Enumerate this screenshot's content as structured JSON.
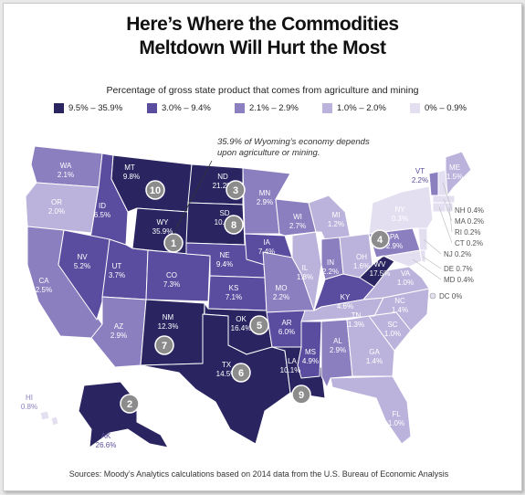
{
  "title": {
    "line1": "Here’s Where the Commodities",
    "line2": "Meltdown Will Hurt the Most"
  },
  "subtitle": "Percentage of gross state product that comes from agriculture and mining",
  "legend": [
    {
      "label": "9.5% – 35.9%",
      "color": "#2a2460"
    },
    {
      "label": "3.0% – 9.4%",
      "color": "#5a4c9e"
    },
    {
      "label": "2.1% – 2.9%",
      "color": "#8b7fc0"
    },
    {
      "label": "1.0% – 2.0%",
      "color": "#bbb3dc"
    },
    {
      "label": "0% – 0.9%",
      "color": "#e3dff0"
    }
  ],
  "annotation": {
    "line1": "35.9% of Wyoming’s economy depends",
    "line2": "upon agriculture or mining."
  },
  "source": "Sources: Moody’s Analytics calculations based on 2014 data from the U.S. Bureau of Economic Analysis",
  "states": [
    {
      "abbr": "WA",
      "value": "2.1%"
    },
    {
      "abbr": "OR",
      "value": "2.0%"
    },
    {
      "abbr": "CA",
      "value": "2.5%"
    },
    {
      "abbr": "ID",
      "value": "6.5%"
    },
    {
      "abbr": "NV",
      "value": "5.2%"
    },
    {
      "abbr": "MT",
      "value": "9.8%",
      "rank": "10"
    },
    {
      "abbr": "WY",
      "value": "35.9%",
      "rank": "1"
    },
    {
      "abbr": "UT",
      "value": "3.7%"
    },
    {
      "abbr": "CO",
      "value": "7.3%"
    },
    {
      "abbr": "AZ",
      "value": "2.9%"
    },
    {
      "abbr": "NM",
      "value": "12.3%",
      "rank": "7"
    },
    {
      "abbr": "ND",
      "value": "21.2%",
      "rank": "3"
    },
    {
      "abbr": "SD",
      "value": "10.4%",
      "rank": "8"
    },
    {
      "abbr": "NE",
      "value": "9.4%"
    },
    {
      "abbr": "KS",
      "value": "7.1%"
    },
    {
      "abbr": "OK",
      "value": "16.4%",
      "rank": "5"
    },
    {
      "abbr": "TX",
      "value": "14.5%",
      "rank": "6"
    },
    {
      "abbr": "MN",
      "value": "2.9%"
    },
    {
      "abbr": "IA",
      "value": "7.4%"
    },
    {
      "abbr": "MO",
      "value": "2.2%"
    },
    {
      "abbr": "AR",
      "value": "6.0%"
    },
    {
      "abbr": "LA",
      "value": "10.1%",
      "rank": "9"
    },
    {
      "abbr": "WI",
      "value": "2.7%"
    },
    {
      "abbr": "IL",
      "value": "1.8%"
    },
    {
      "abbr": "MI",
      "value": "1.2%"
    },
    {
      "abbr": "IN",
      "value": "2.2%"
    },
    {
      "abbr": "OH",
      "value": "1.6%"
    },
    {
      "abbr": "KY",
      "value": "4.6%"
    },
    {
      "abbr": "TN",
      "value": "1.3%"
    },
    {
      "abbr": "MS",
      "value": "4.9%"
    },
    {
      "abbr": "AL",
      "value": "2.9%"
    },
    {
      "abbr": "GA",
      "value": "1.4%"
    },
    {
      "abbr": "FL",
      "value": "1.0%"
    },
    {
      "abbr": "SC",
      "value": "1.0%"
    },
    {
      "abbr": "NC",
      "value": "1.4%"
    },
    {
      "abbr": "VA",
      "value": "1.0%"
    },
    {
      "abbr": "WV",
      "value": "17.5%",
      "rank": "4"
    },
    {
      "abbr": "PA",
      "value": "2.9%"
    },
    {
      "abbr": "NY",
      "value": "0.3%"
    },
    {
      "abbr": "VT",
      "value": "2.2%"
    },
    {
      "abbr": "ME",
      "value": "1.5%"
    },
    {
      "abbr": "NH",
      "value": "0.4%"
    },
    {
      "abbr": "MA",
      "value": "0.2%"
    },
    {
      "abbr": "RI",
      "value": "0.2%"
    },
    {
      "abbr": "CT",
      "value": "0.2%"
    },
    {
      "abbr": "NJ",
      "value": "0.2%"
    },
    {
      "abbr": "DE",
      "value": "0.7%"
    },
    {
      "abbr": "MD",
      "value": "0.4%"
    },
    {
      "abbr": "DC",
      "value": "0%"
    },
    {
      "abbr": "HI",
      "value": "0.8%"
    },
    {
      "abbr": "AK",
      "value": "26.6%",
      "rank": "2"
    }
  ]
}
